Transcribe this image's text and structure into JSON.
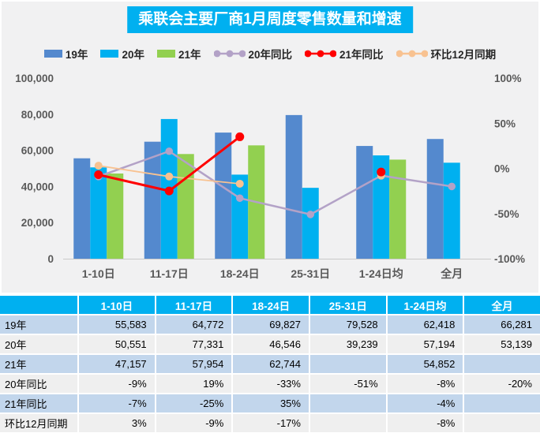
{
  "title": "乘联会主要厂商1月周度零售数量和增速",
  "colors": {
    "accent_cyan": "#00b0f0",
    "bar_19": "#5489ce",
    "bar_20": "#00b0f0",
    "bar_21": "#92d050",
    "line_yoy20": "#b3a2c7",
    "line_yoy21": "#ff0000",
    "line_mom": "#f8c291",
    "panel_bg": "#f1f1f2",
    "axis_text": "#595959",
    "axis_line": "#c9c9c9",
    "table_row_blue": "#c2d6ec",
    "table_row_gray": "#efefef"
  },
  "chart_data": {
    "type": "combo-bar-line",
    "title": "乘联会主要厂商1月周度零售数量和增速",
    "categories": [
      "1-10日",
      "11-17日",
      "18-24日",
      "25-31日",
      "1-24日均",
      "全月"
    ],
    "bar_series": [
      {
        "name": "19年",
        "color": "#5489ce",
        "values": [
          55583,
          64772,
          69827,
          79528,
          62418,
          66281
        ]
      },
      {
        "name": "20年",
        "color": "#00b0f0",
        "values": [
          50551,
          77331,
          46546,
          39239,
          57194,
          53139
        ]
      },
      {
        "name": "21年",
        "color": "#92d050",
        "values": [
          47157,
          57954,
          62744,
          null,
          54852,
          null
        ]
      }
    ],
    "line_series": [
      {
        "name": "20年同比",
        "color": "#b3a2c7",
        "values_pct": [
          -9,
          19,
          -33,
          -51,
          -8,
          -20
        ]
      },
      {
        "name": "21年同比",
        "color": "#ff0000",
        "values_pct": [
          -7,
          -25,
          35,
          null,
          -4,
          null
        ]
      },
      {
        "name": "环比12月同期",
        "color": "#f8c291",
        "values_pct": [
          3,
          -9,
          -17,
          null,
          -8,
          null
        ]
      }
    ],
    "left_axis": {
      "min": 0,
      "max": 100000,
      "grid": false,
      "ticks": [
        {
          "v": 0,
          "label": "0"
        },
        {
          "v": 20000,
          "label": "20,000"
        },
        {
          "v": 40000,
          "label": "40,000"
        },
        {
          "v": 60000,
          "label": "60,000"
        },
        {
          "v": 80000,
          "label": "80,000"
        },
        {
          "v": 100000,
          "label": "100,000"
        }
      ]
    },
    "right_axis": {
      "min": -100,
      "max": 100,
      "ticks": [
        {
          "v": 100,
          "label": "100%"
        },
        {
          "v": 50,
          "label": "50%"
        },
        {
          "v": 0,
          "label": "0%"
        },
        {
          "v": -50,
          "label": "-50%"
        },
        {
          "v": -100,
          "label": "-100%"
        }
      ]
    },
    "legend_order": [
      "19年",
      "20年",
      "21年",
      "20年同比",
      "21年同比",
      "环比12月同期"
    ],
    "legend_position": "top"
  },
  "table": {
    "header": [
      "",
      "1-10日",
      "11-17日",
      "18-24日",
      "25-31日",
      "1-24日均",
      "全月"
    ],
    "rows": [
      {
        "label": "19年",
        "values": [
          "55,583",
          "64,772",
          "69,827",
          "79,528",
          "62,418",
          "66,281"
        ]
      },
      {
        "label": "20年",
        "values": [
          "50,551",
          "77,331",
          "46,546",
          "39,239",
          "57,194",
          "53,139"
        ]
      },
      {
        "label": "21年",
        "values": [
          "47,157",
          "57,954",
          "62,744",
          "",
          "54,852",
          ""
        ]
      },
      {
        "label": "20年同比",
        "values": [
          "-9%",
          "19%",
          "-33%",
          "-51%",
          "-8%",
          "-20%"
        ]
      },
      {
        "label": "21年同比",
        "values": [
          "-7%",
          "-25%",
          "35%",
          "",
          "-4%",
          ""
        ]
      },
      {
        "label": "环比12月同期",
        "values": [
          "3%",
          "-9%",
          "-17%",
          "",
          "-8%",
          ""
        ]
      }
    ]
  }
}
